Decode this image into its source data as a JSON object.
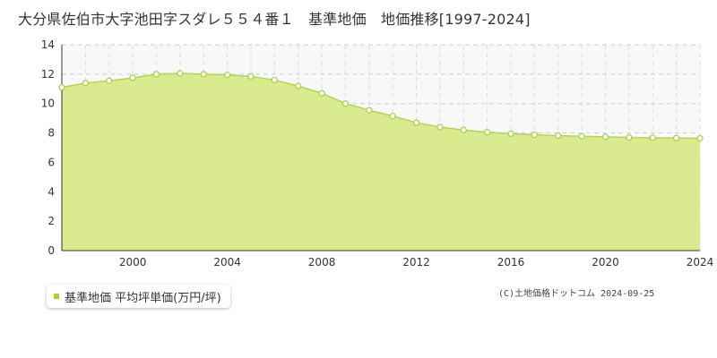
{
  "title": "大分県佐伯市大字池田字スダレ５５４番１　基準地価　地価推移[1997-2024]",
  "legend": {
    "label": "基準地価 平均坪単価(万円/坪)"
  },
  "copyright": "(C)土地価格ドットコム 2024-09-25",
  "colors": {
    "area_fill": "#d9ea8f",
    "line": "#b3d35a",
    "marker_fill": "#ffffff",
    "marker_stroke": "#a8cc4a",
    "upper_band": "#f8f8f8",
    "grid": "#cccccc",
    "legend_marker": "#a6cf3a"
  },
  "chart_data": {
    "type": "area",
    "title": "",
    "xlabel": "",
    "ylabel": "",
    "xlim": [
      1997,
      2024
    ],
    "ylim": [
      0,
      14
    ],
    "x_ticks": [
      2000,
      2004,
      2008,
      2012,
      2016,
      2020,
      2024
    ],
    "y_ticks": [
      0,
      2,
      4,
      6,
      8,
      10,
      12,
      14
    ],
    "grid": true,
    "legend_position": "bottom-left",
    "series": [
      {
        "name": "基準地価 平均坪単価(万円/坪)",
        "x": [
          1997,
          1998,
          1999,
          2000,
          2001,
          2002,
          2003,
          2004,
          2005,
          2006,
          2007,
          2008,
          2009,
          2010,
          2011,
          2012,
          2013,
          2014,
          2015,
          2016,
          2017,
          2018,
          2019,
          2020,
          2021,
          2022,
          2023,
          2024
        ],
        "values": [
          11.1,
          11.4,
          11.55,
          11.75,
          12.0,
          12.05,
          12.0,
          11.95,
          11.85,
          11.6,
          11.2,
          10.7,
          10.0,
          9.55,
          9.15,
          8.7,
          8.4,
          8.2,
          8.05,
          7.95,
          7.88,
          7.82,
          7.78,
          7.74,
          7.7,
          7.68,
          7.66,
          7.64
        ]
      }
    ]
  }
}
